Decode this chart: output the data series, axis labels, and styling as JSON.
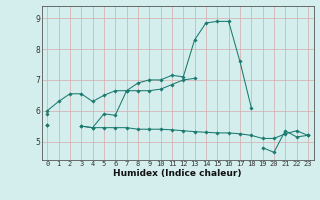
{
  "xlabel": "Humidex (Indice chaleur)",
  "x_values": [
    0,
    1,
    2,
    3,
    4,
    5,
    6,
    7,
    8,
    9,
    10,
    11,
    12,
    13,
    14,
    15,
    16,
    17,
    18,
    19,
    20,
    21,
    22,
    23
  ],
  "line1": [
    6.0,
    6.3,
    6.55,
    6.55,
    6.3,
    6.5,
    6.65,
    6.65,
    6.9,
    7.0,
    7.0,
    7.15,
    7.1,
    8.3,
    8.85,
    8.9,
    8.9,
    7.6,
    6.1,
    null,
    null,
    null,
    null,
    null
  ],
  "line2": [
    5.9,
    null,
    null,
    5.5,
    5.45,
    5.9,
    5.85,
    6.65,
    6.65,
    6.65,
    6.7,
    6.85,
    7.0,
    7.05,
    null,
    null,
    null,
    null,
    null,
    null,
    null,
    null,
    null,
    null
  ],
  "line3": [
    5.55,
    null,
    null,
    5.5,
    5.45,
    5.45,
    5.45,
    5.45,
    5.4,
    5.4,
    5.4,
    5.38,
    5.35,
    5.32,
    5.3,
    5.28,
    5.28,
    5.25,
    5.2,
    5.1,
    5.1,
    5.25,
    5.35,
    5.2
  ],
  "line4": [
    5.55,
    null,
    null,
    null,
    null,
    null,
    null,
    null,
    null,
    null,
    null,
    null,
    null,
    null,
    null,
    null,
    null,
    null,
    null,
    4.8,
    4.65,
    5.35,
    5.15,
    5.2
  ],
  "line_color": "#1a7a6e",
  "bg_color": "#d4eeee",
  "grid_color": "#c0d8d8",
  "ylim": [
    4.4,
    9.4
  ],
  "yticks": [
    5,
    6,
    7,
    8,
    9
  ],
  "xlim": [
    -0.5,
    23.5
  ]
}
